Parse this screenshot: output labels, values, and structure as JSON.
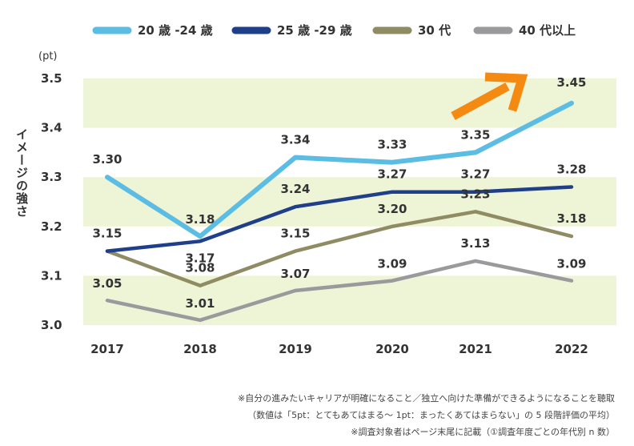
{
  "chart_data": {
    "type": "line",
    "title": "",
    "xlabel": "",
    "ylabel": "イメージの強さ",
    "unit": "(pt)",
    "categories": [
      "2017",
      "2018",
      "2019",
      "2020",
      "2021",
      "2022"
    ],
    "ylim": [
      3.0,
      3.5
    ],
    "yticks": [
      "3.0",
      "3.1",
      "3.2",
      "3.3",
      "3.4",
      "3.5"
    ],
    "legend_position": "top",
    "series": [
      {
        "name": "20 歳 -24 歳",
        "color": "#5bbde3",
        "values": [
          3.3,
          3.18,
          3.34,
          3.33,
          3.35,
          3.45
        ],
        "labels": [
          "3.30",
          "3.18",
          "3.34",
          "3.33",
          "3.35",
          "3.45"
        ]
      },
      {
        "name": "25 歳 -29 歳",
        "color": "#1f3f8a",
        "values": [
          3.15,
          3.17,
          3.24,
          3.27,
          3.27,
          3.28
        ],
        "labels": [
          "3.15",
          "3.17",
          "3.24",
          "3.27",
          "3.27",
          "3.28"
        ]
      },
      {
        "name": "30 代",
        "color": "#8f8c63",
        "values": [
          3.15,
          3.08,
          3.15,
          3.2,
          3.23,
          3.18
        ],
        "labels": [
          "",
          "3.08",
          "3.15",
          "3.20",
          "3.23",
          "3.18"
        ]
      },
      {
        "name": "40 代以上",
        "color": "#9a9a9d",
        "values": [
          3.05,
          3.01,
          3.07,
          3.09,
          3.13,
          3.09
        ],
        "labels": [
          "3.05",
          "3.01",
          "3.07",
          "3.09",
          "3.13",
          "3.09"
        ]
      }
    ],
    "band_color": "#eef4d6",
    "arrow_color": "#f58a13"
  },
  "notes": {
    "line1": "※自分の進みたいキャリアが明確になること／独立へ向けた準備ができるようになることを聴取",
    "line2": "（数値は「5pt：とてもあてはまる〜 1pt：まったくあてはまらない」の 5 段階評価の平均）",
    "line3": "※調査対象者はページ末尾に記載（①調査年度ごとの年代別 n 数）"
  }
}
